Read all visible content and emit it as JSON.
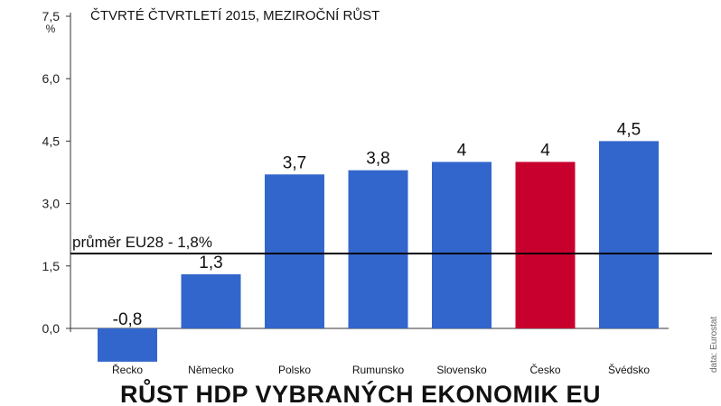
{
  "chart_data": {
    "type": "bar",
    "title": "RŮST HDP VYBRANÝCH EKONOMIK EU",
    "subtitle": "ČTVRTÉ ČTVRTLETÍ 2015, MEZIROČNÍ RŮST",
    "ylabel": "%",
    "ylim": [
      -0.8,
      7.5
    ],
    "yticks": [
      "0,0",
      "1,5",
      "3,0",
      "4,5",
      "6,0",
      "7,5"
    ],
    "categories": [
      "Řecko",
      "Německo",
      "Polsko",
      "Rumunsko",
      "Slovensko",
      "Česko",
      "Švédsko"
    ],
    "values": [
      -0.8,
      1.3,
      3.7,
      3.8,
      4,
      4,
      4.5
    ],
    "value_labels": [
      "-0,8",
      "1,3",
      "3,7",
      "3,8",
      "4",
      "4",
      "4,5"
    ],
    "colors": [
      "#3366cc",
      "#3366cc",
      "#3366cc",
      "#3366cc",
      "#3366cc",
      "#c8002d",
      "#3366cc"
    ],
    "reference_line": {
      "value": 1.8,
      "label": "průměr EU28 - 1,8%"
    },
    "source": "data: Eurostat",
    "grid": false,
    "legend": "none"
  }
}
